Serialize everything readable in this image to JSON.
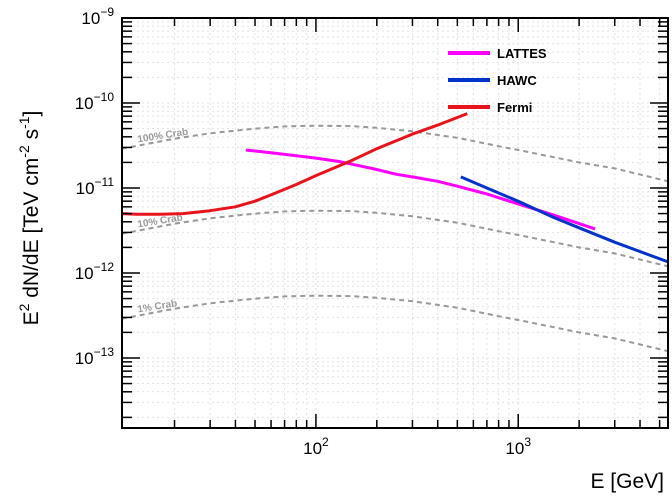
{
  "chart_data": {
    "type": "line",
    "title": "",
    "xlabel": "E [GeV]",
    "ylabel_parts": [
      "E",
      "2",
      " dN/dE [TeV cm",
      "-2",
      " s",
      "-1",
      "]"
    ],
    "x_scale": "log",
    "y_scale": "log",
    "xlim": [
      11,
      5500
    ],
    "ylim": [
      1.5e-14,
      1e-09
    ],
    "x_ticks": [
      {
        "base": "10",
        "exp": "2",
        "value": 100
      },
      {
        "base": "10",
        "exp": "3",
        "value": 1000
      }
    ],
    "y_ticks": [
      {
        "base": "10",
        "exp": "−9",
        "value": 1e-09
      },
      {
        "base": "10",
        "exp": "−10",
        "value": 1e-10
      },
      {
        "base": "10",
        "exp": "−11",
        "value": 1e-11
      },
      {
        "base": "10",
        "exp": "−12",
        "value": 1e-12
      },
      {
        "base": "10",
        "exp": "−13",
        "value": 1e-13
      }
    ],
    "grid": true,
    "legend_position": "top-right",
    "series": [
      {
        "name": "LATTES",
        "color": "#ff00ff",
        "x": [
          45,
          60,
          80,
          100,
          130,
          160,
          200,
          250,
          300,
          400,
          500,
          700,
          1000,
          1500,
          2400
        ],
        "y": [
          2.8e-11,
          2.6e-11,
          2.4e-11,
          2.25e-11,
          2.05e-11,
          1.85e-11,
          1.65e-11,
          1.45e-11,
          1.35e-11,
          1.2e-11,
          1.05e-11,
          8.5e-12,
          6.5e-12,
          4.8e-12,
          3.3e-12
        ]
      },
      {
        "name": "HAWC",
        "color": "#0033cc",
        "x": [
          520,
          700,
          1000,
          1500,
          2000,
          3000,
          5500
        ],
        "y": [
          1.35e-11,
          1e-11,
          7e-12,
          4.5e-12,
          3.4e-12,
          2.3e-12,
          1.35e-12
        ]
      },
      {
        "name": "Fermi",
        "color": "#e8141c",
        "x": [
          11,
          13,
          17,
          22,
          30,
          40,
          50,
          60,
          80,
          100,
          150,
          200,
          300,
          400,
          560
        ],
        "y": [
          5e-12,
          4.9e-12,
          4.9e-12,
          5e-12,
          5.4e-12,
          6e-12,
          7e-12,
          8.3e-12,
          1.1e-11,
          1.4e-11,
          2.1e-11,
          2.9e-11,
          4.3e-11,
          5.5e-11,
          7.5e-11
        ]
      }
    ],
    "reference_curves": [
      {
        "label": "100% Crab",
        "color": "#999999",
        "x": [
          11,
          20,
          30,
          50,
          70,
          100,
          150,
          200,
          300,
          500,
          800,
          1000,
          1500,
          2000,
          3000,
          5500
        ],
        "y": [
          2.9e-11,
          3.8e-11,
          4.4e-11,
          5e-11,
          5.3e-11,
          5.4e-11,
          5.35e-11,
          5.1e-11,
          4.65e-11,
          3.9e-11,
          3.1e-11,
          2.8e-11,
          2.3e-11,
          2e-11,
          1.7e-11,
          1.2e-11
        ]
      },
      {
        "label": "10% Crab",
        "color": "#999999",
        "x": [
          11,
          20,
          30,
          50,
          70,
          100,
          150,
          200,
          300,
          500,
          800,
          1000,
          1500,
          2000,
          3000,
          5500
        ],
        "y": [
          2.9e-12,
          3.8e-12,
          4.4e-12,
          5e-12,
          5.3e-12,
          5.4e-12,
          5.35e-12,
          5.1e-12,
          4.65e-12,
          3.9e-12,
          3.1e-12,
          2.8e-12,
          2.3e-12,
          2e-12,
          1.7e-12,
          1.2e-12
        ]
      },
      {
        "label": "1% Crab",
        "color": "#999999",
        "x": [
          11,
          20,
          30,
          50,
          70,
          100,
          150,
          200,
          300,
          500,
          800,
          1000,
          1500,
          2000,
          3000,
          5500
        ],
        "y": [
          2.9e-13,
          3.8e-13,
          4.4e-13,
          5e-13,
          5.3e-13,
          5.4e-13,
          5.35e-13,
          5.1e-13,
          4.65e-13,
          3.9e-13,
          3.1e-13,
          2.8e-13,
          2.3e-13,
          2e-13,
          1.7e-13,
          1.2e-13
        ]
      }
    ]
  }
}
